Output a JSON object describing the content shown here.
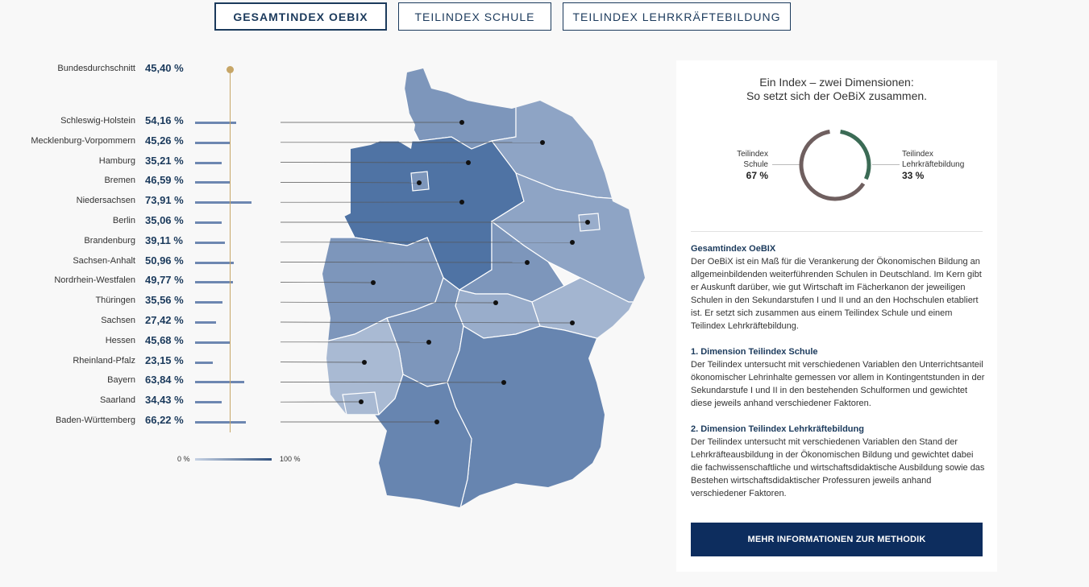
{
  "tabs": [
    {
      "label": "GESAMTINDEX OEBIX"
    },
    {
      "label": "TEILINDEX SCHULE"
    },
    {
      "label": "TEILINDEX LEHRKRÄFTEBILDUNG"
    }
  ],
  "average": {
    "label": "Bundesdurchschnitt",
    "value": "45,40 %",
    "number": 45.4
  },
  "states": [
    {
      "name": "Schleswig-Holstein",
      "value": "54,16 %",
      "number": 54.16
    },
    {
      "name": "Mecklenburg-Vorpommern",
      "value": "45,26 %",
      "number": 45.26
    },
    {
      "name": "Hamburg",
      "value": "35,21 %",
      "number": 35.21
    },
    {
      "name": "Bremen",
      "value": "46,59 %",
      "number": 46.59
    },
    {
      "name": "Niedersachsen",
      "value": "73,91 %",
      "number": 73.91
    },
    {
      "name": "Berlin",
      "value": "35,06 %",
      "number": 35.06
    },
    {
      "name": "Brandenburg",
      "value": "39,11 %",
      "number": 39.11
    },
    {
      "name": "Sachsen-Anhalt",
      "value": "50,96 %",
      "number": 50.96
    },
    {
      "name": "Nordrhein-Westfalen",
      "value": "49,77 %",
      "number": 49.77
    },
    {
      "name": "Thüringen",
      "value": "35,56 %",
      "number": 35.56
    },
    {
      "name": "Sachsen",
      "value": "27,42 %",
      "number": 27.42
    },
    {
      "name": "Hessen",
      "value": "45,68 %",
      "number": 45.68
    },
    {
      "name": "Rheinland-Pfalz",
      "value": "23,15 %",
      "number": 23.15
    },
    {
      "name": "Bayern",
      "value": "63,84 %",
      "number": 63.84
    },
    {
      "name": "Saarland",
      "value": "34,43 %",
      "number": 34.43
    },
    {
      "name": "Baden-Württemberg",
      "value": "66,22 %",
      "number": 66.22
    }
  ],
  "scale": {
    "min_label": "0 %",
    "max_label": "100 %"
  },
  "panel": {
    "title_line1": "Ein Index – zwei Dimensionen:",
    "title_line2": "So setzt sich der OeBiX zusammen.",
    "left_label_line1": "Teilindex",
    "left_label_line2": "Schule",
    "left_value": "67 %",
    "left_share": 0.67,
    "right_label_line1": "Teilindex",
    "right_label_line2": "Lehrkräftebildung",
    "right_value": "33 %",
    "right_share": 0.33,
    "section1_title": "Gesamtindex OeBIX",
    "section1_text": "Der OeBiX ist ein Maß für die Verankerung der Ökonomischen Bildung an allgemeinbildenden weiterführenden Schulen in Deutschland. Im Kern gibt er Auskunft darüber, wie gut Wirtschaft im Fächerkanon der jeweiligen Schulen in den Sekundarstufen I und II und an den Hochschulen etabliert ist. Er setzt sich zusammen aus einem Teilindex Schule und einem Teilindex Lehrkräftebildung.",
    "section2_title": "1. Dimension Teilindex Schule",
    "section2_text": "Der Teilindex untersucht mit verschiedenen Variablen den Unterrichtsanteil ökonomischer Lehrinhalte gemessen vor allem in Kontingentstunden in der Sekundarstufe I und II in den bestehenden Schulformen und gewichtet diese jeweils anhand verschiedener Faktoren.",
    "section3_title": "2. Dimension Teilindex Lehrkräftebildung",
    "section3_text": "Der Teilindex untersucht mit verschiedenen Variablen den Stand der Lehrkräfteausbildung in der Ökonomischen Bildung und gewichtet dabei die fachwissenschaftliche und wirtschaftsdidaktische Ausbildung sowie das Bestehen wirtschaftsdidaktischer Professuren jeweils anhand verschiedener Faktoren.",
    "cta_label": "MEHR INFORMATIONEN ZUR METHODIK"
  },
  "colors": {
    "navy": "#0d2d5e",
    "accent": "#1b3a5c",
    "gold": "#c7a667",
    "school": "#6f5f5f",
    "teacher": "#3b6b55"
  }
}
